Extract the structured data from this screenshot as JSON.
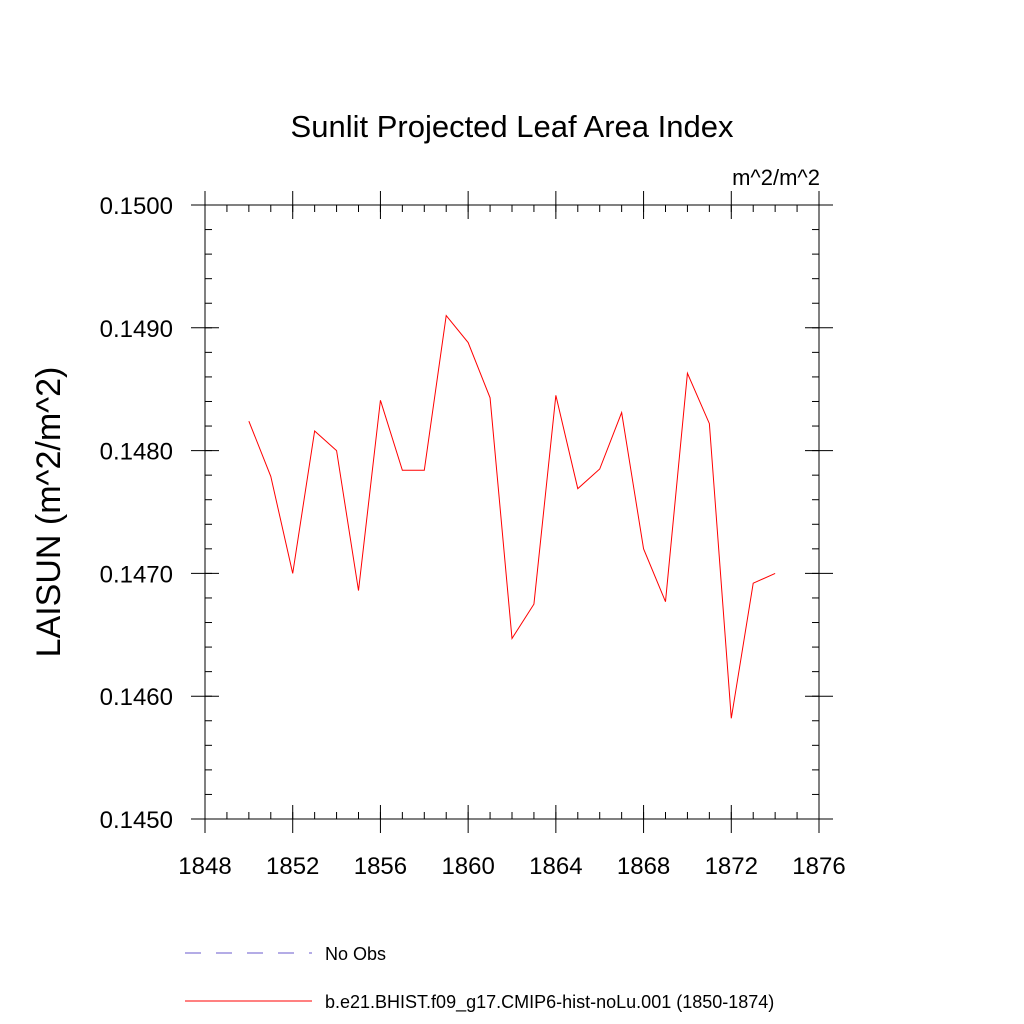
{
  "chart_data": {
    "type": "line",
    "title": "Sunlit Projected Leaf Area Index",
    "units_label": "m^2/m^2",
    "ylabel": "LAISUN  (m^2/m^2)",
    "xlabel": "",
    "xlim": [
      1848,
      1876
    ],
    "ylim": [
      0.145,
      0.15
    ],
    "x_ticks": [
      1848,
      1852,
      1856,
      1860,
      1864,
      1868,
      1872,
      1876
    ],
    "x_tick_labels": [
      "1848",
      "1852",
      "1856",
      "1860",
      "1864",
      "1868",
      "1872",
      "1876"
    ],
    "y_ticks": [
      0.145,
      0.146,
      0.147,
      0.148,
      0.149,
      0.15
    ],
    "y_tick_labels": [
      "0.1450",
      "0.1460",
      "0.1470",
      "0.1480",
      "0.1490",
      "0.1500"
    ],
    "x_minor_step": 1,
    "y_minor_step": 0.0002,
    "grid": false,
    "legend_position": "bottom",
    "series": [
      {
        "name": "b.e21.BHIST.f09_g17.CMIP6-hist-noLu.001 (1850-1874)",
        "color": "#ff0000",
        "style": "solid",
        "x": [
          1850,
          1851,
          1852,
          1853,
          1854,
          1855,
          1856,
          1857,
          1858,
          1859,
          1860,
          1861,
          1862,
          1863,
          1864,
          1865,
          1866,
          1867,
          1868,
          1869,
          1870,
          1871,
          1872,
          1873,
          1874
        ],
        "y": [
          0.14824,
          0.14779,
          0.147,
          0.14816,
          0.148,
          0.14686,
          0.14841,
          0.14784,
          0.14784,
          0.1491,
          0.14888,
          0.14843,
          0.14647,
          0.14675,
          0.14845,
          0.14769,
          0.14785,
          0.14831,
          0.1472,
          0.14677,
          0.14863,
          0.14822,
          0.14582,
          0.14692,
          0.147
        ]
      }
    ],
    "legend": [
      {
        "label": "No Obs",
        "color": "#6a5acd",
        "style": "dashed"
      },
      {
        "label": "b.e21.BHIST.f09_g17.CMIP6-hist-noLu.001 (1850-1874)",
        "color": "#ff0000",
        "style": "solid"
      }
    ]
  }
}
